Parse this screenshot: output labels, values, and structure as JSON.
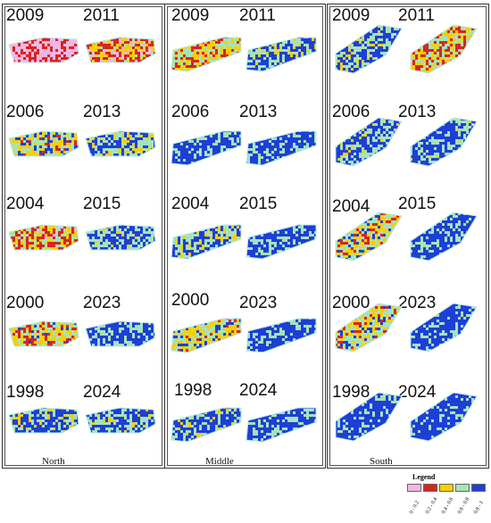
{
  "regions": {
    "north": {
      "label": "North",
      "maps": [
        {
          "year": "2009",
          "mean_index": 0.12
        },
        {
          "year": "2011",
          "mean_index": 0.38
        },
        {
          "year": "2006",
          "mean_index": 0.62
        },
        {
          "year": "2013",
          "mean_index": 0.78
        },
        {
          "year": "2004",
          "mean_index": 0.45
        },
        {
          "year": "2015",
          "mean_index": 0.82
        },
        {
          "year": "2000",
          "mean_index": 0.55
        },
        {
          "year": "2023",
          "mean_index": 0.88
        },
        {
          "year": "1998",
          "mean_index": 0.8
        },
        {
          "year": "2024",
          "mean_index": 0.84
        }
      ]
    },
    "middle": {
      "label": "Middle",
      "maps": [
        {
          "year": "2009",
          "mean_index": 0.52
        },
        {
          "year": "2011",
          "mean_index": 0.8
        },
        {
          "year": "2006",
          "mean_index": 0.9
        },
        {
          "year": "2013",
          "mean_index": 0.88
        },
        {
          "year": "2004",
          "mean_index": 0.78
        },
        {
          "year": "2015",
          "mean_index": 0.9
        },
        {
          "year": "2000",
          "mean_index": 0.62
        },
        {
          "year": "2023",
          "mean_index": 0.9
        },
        {
          "year": "1998",
          "mean_index": 0.82
        },
        {
          "year": "2024",
          "mean_index": 0.92
        }
      ]
    },
    "south": {
      "label": "South",
      "maps": [
        {
          "year": "2009",
          "mean_index": 0.82
        },
        {
          "year": "2011",
          "mean_index": 0.5
        },
        {
          "year": "2006",
          "mean_index": 0.84
        },
        {
          "year": "2013",
          "mean_index": 0.86
        },
        {
          "year": "2004",
          "mean_index": 0.6
        },
        {
          "year": "2015",
          "mean_index": 0.9
        },
        {
          "year": "2000",
          "mean_index": 0.6
        },
        {
          "year": "2023",
          "mean_index": 0.92
        },
        {
          "year": "1998",
          "mean_index": 0.92
        },
        {
          "year": "2024",
          "mean_index": 0.94
        }
      ]
    }
  },
  "legend": {
    "title": "Legend",
    "classes": [
      {
        "label": "0 - 0.2",
        "color": "#f2b6e6"
      },
      {
        "label": "0.2 - 0.4",
        "color": "#d7261e"
      },
      {
        "label": "0.4 - 0.6",
        "color": "#f5d000"
      },
      {
        "label": "0.6 - 0.8",
        "color": "#a6e3ba"
      },
      {
        "label": "0.8 - 1",
        "color": "#1e3fd6"
      }
    ]
  }
}
